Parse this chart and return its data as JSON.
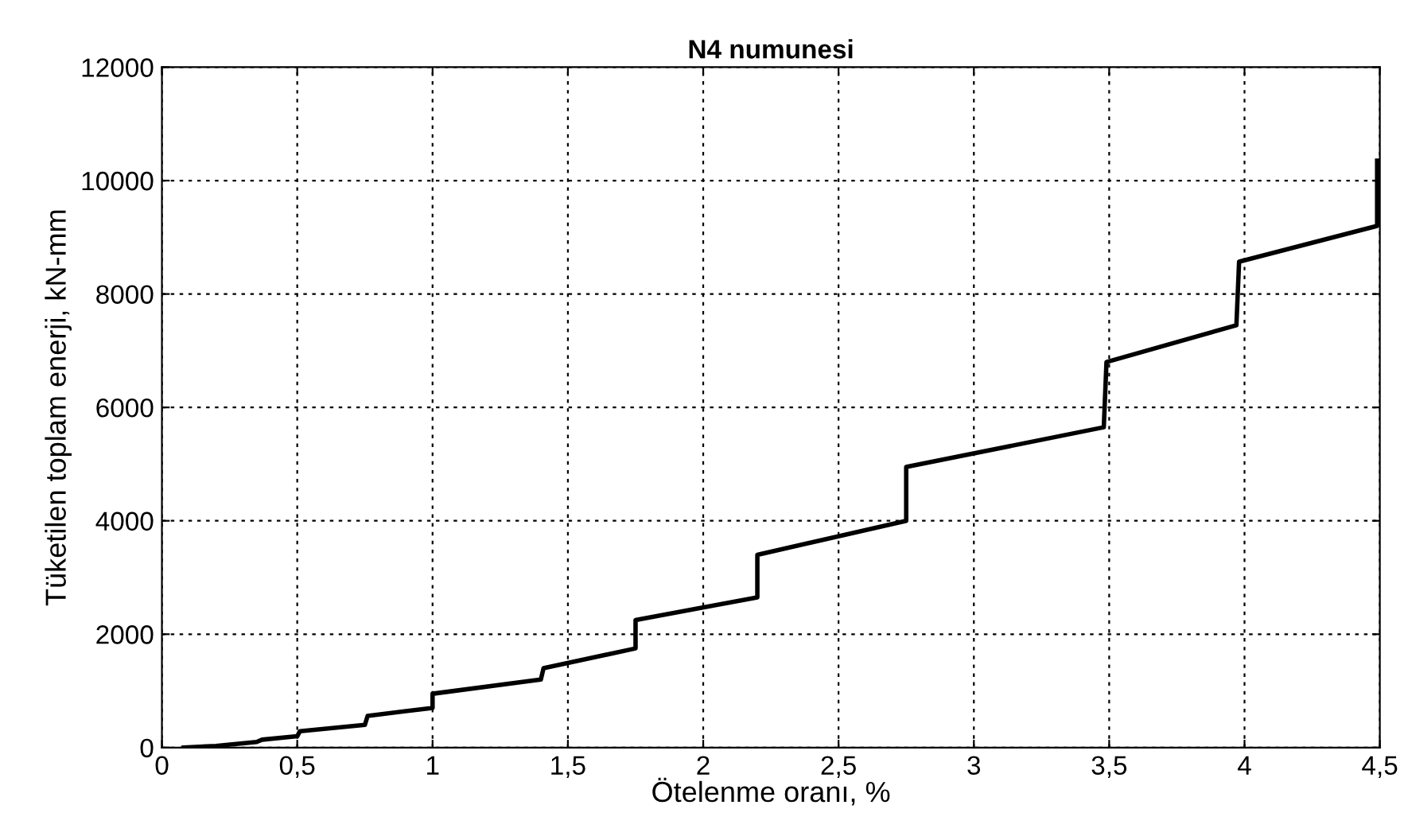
{
  "chart_data": {
    "type": "line",
    "title": "N4 numunesi",
    "xlabel": "Ötelenme oranı, %",
    "ylabel": "Tüketilen toplam enerji, kN-mm",
    "series": [
      {
        "color": "#000000",
        "x": [
          0.08,
          0.2,
          0.35,
          0.37,
          0.5,
          0.51,
          0.75,
          0.76,
          1.0,
          1.0,
          1.4,
          1.41,
          1.75,
          1.75,
          2.2,
          2.2,
          2.75,
          2.75,
          3.48,
          3.49,
          3.97,
          3.98,
          4.49,
          4.49
        ],
        "values": [
          0,
          30,
          100,
          140,
          200,
          290,
          400,
          560,
          700,
          950,
          1200,
          1400,
          1750,
          2250,
          2650,
          3400,
          4000,
          4950,
          5650,
          6800,
          7450,
          8570,
          9200,
          10350
        ]
      }
    ],
    "xlim": [
      0,
      4.5
    ],
    "ylim": [
      0,
      12000
    ],
    "xticks": [
      0,
      {
        "value": 0.5,
        "label": "0,5"
      },
      1,
      {
        "value": 1.5,
        "label": "1,5"
      },
      2,
      {
        "value": 2.5,
        "label": "2,5"
      },
      3,
      {
        "value": 3.5,
        "label": "3,5"
      },
      4,
      {
        "value": 4.5,
        "label": "4,5"
      }
    ],
    "yticks": [
      0,
      2000,
      4000,
      6000,
      8000,
      10000,
      12000
    ],
    "grid": true,
    "line_style": "solid",
    "marker": "none"
  }
}
